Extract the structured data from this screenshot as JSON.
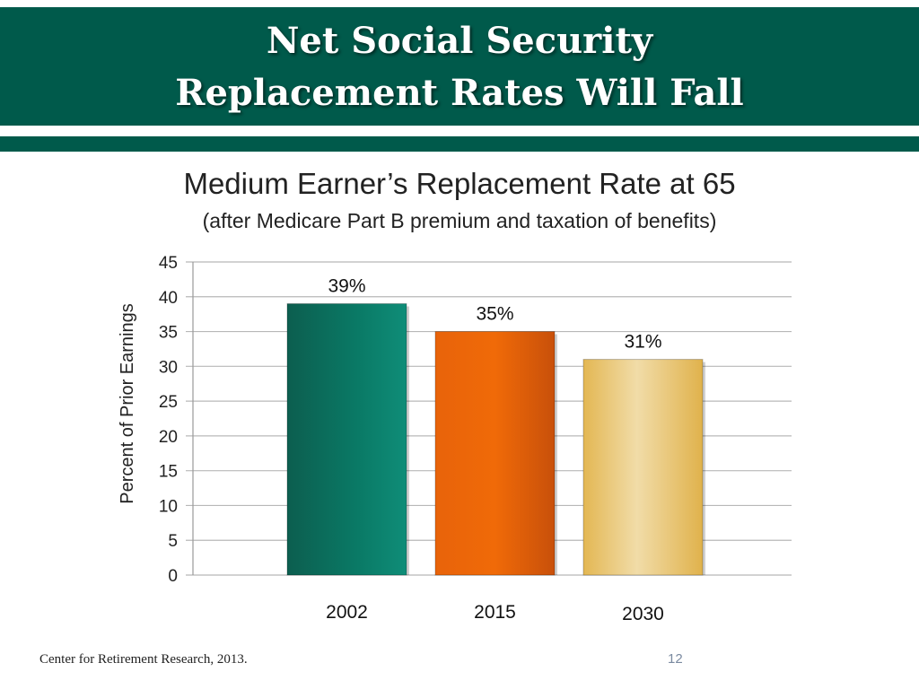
{
  "slide": {
    "title_line1": "Net Social Security",
    "title_line2": "Replacement Rates Will Fall",
    "footer_source": "Center for Retirement Research, 2013.",
    "page_number": "12"
  },
  "colors": {
    "header": "#005a4b",
    "bar_2002": "#0a7a66",
    "bar_2015": "#e05a0a",
    "bar_2030": "#ecd08a",
    "gridline": "#b8b8b8"
  },
  "chart_data": {
    "type": "bar",
    "title": "Medium Earner’s Replacement Rate at 65",
    "subtitle": "(after Medicare Part B premium and taxation of benefits)",
    "xlabel": "",
    "ylabel": "Percent of Prior Earnings",
    "categories": [
      "2002",
      "2015",
      "2030"
    ],
    "values": [
      39,
      35,
      31
    ],
    "data_labels": [
      "39%",
      "35%",
      "31%"
    ],
    "ylim": [
      0,
      45
    ],
    "yticks": [
      0,
      5,
      10,
      15,
      20,
      25,
      30,
      35,
      40,
      45
    ],
    "grid": true,
    "legend": "none"
  }
}
